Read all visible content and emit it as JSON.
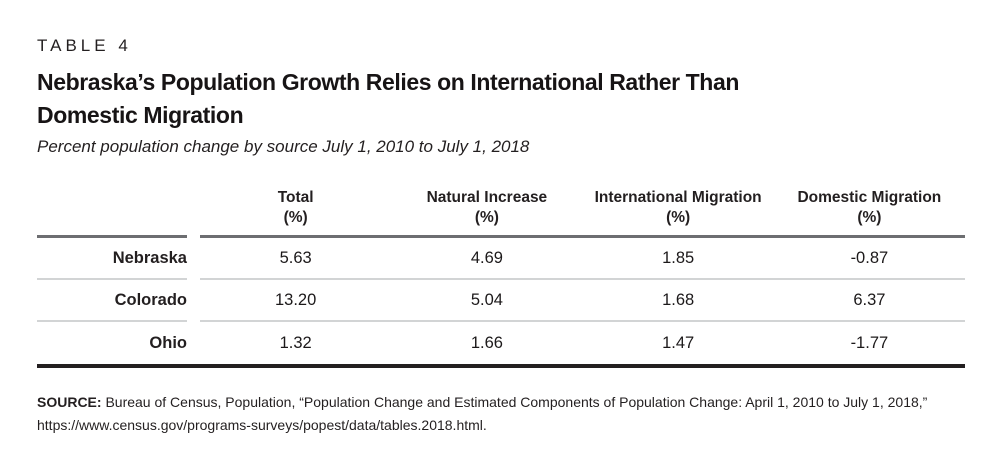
{
  "page": {
    "kicker": "TABLE 4",
    "title_line1": "Nebraska’s Population Growth Relies on International Rather Than",
    "title_line2": "Domestic Migration",
    "subtitle": "Percent population change by source July 1, 2010 to July 1, 2018"
  },
  "table": {
    "columns": [
      {
        "label": "Total",
        "unit": "(%)"
      },
      {
        "label": "Natural Increase",
        "unit": "(%)"
      },
      {
        "label": "International Migration",
        "unit": "(%)"
      },
      {
        "label": "Domestic Migration",
        "unit": "(%)"
      }
    ],
    "rows": [
      {
        "label": "Nebraska",
        "values": [
          "5.63",
          "4.69",
          "1.85",
          "-0.87"
        ]
      },
      {
        "label": "Colorado",
        "values": [
          "13.20",
          "5.04",
          "1.68",
          "6.37"
        ]
      },
      {
        "label": "Ohio",
        "values": [
          "1.32",
          "1.66",
          "1.47",
          "-1.77"
        ]
      }
    ]
  },
  "source": {
    "label": "SOURCE:",
    "line1": " Bureau of Census, Population, “Population Change and Estimated Components of Population Change: April 1, 2010 to July 1, 2018,”",
    "line2": "https://www.census.gov/programs-surveys/popest/data/tables.2018.html."
  },
  "colors": {
    "text": "#231f20",
    "header_rule": "#6d6e71",
    "row_separator": "#d2d4d5",
    "bottom_rule": "#231f20",
    "background": "#ffffff"
  },
  "chart_data": {
    "type": "table",
    "title": "Nebraska’s Population Growth Relies on International Rather Than Domestic Migration",
    "subtitle": "Percent population change by source July 1, 2010 to July 1, 2018",
    "columns": [
      "Total (%)",
      "Natural Increase (%)",
      "International Migration (%)",
      "Domestic Migration (%)"
    ],
    "rows": [
      {
        "label": "Nebraska",
        "values": [
          5.63,
          4.69,
          1.85,
          -0.87
        ]
      },
      {
        "label": "Colorado",
        "values": [
          13.2,
          5.04,
          1.68,
          6.37
        ]
      },
      {
        "label": "Ohio",
        "values": [
          1.32,
          1.66,
          1.47,
          -1.77
        ]
      }
    ],
    "source": "Bureau of Census, Population, “Population Change and Estimated Components of Population Change: April 1, 2010 to July 1, 2018,” https://www.census.gov/programs-surveys/popest/data/tables.2018.html."
  }
}
